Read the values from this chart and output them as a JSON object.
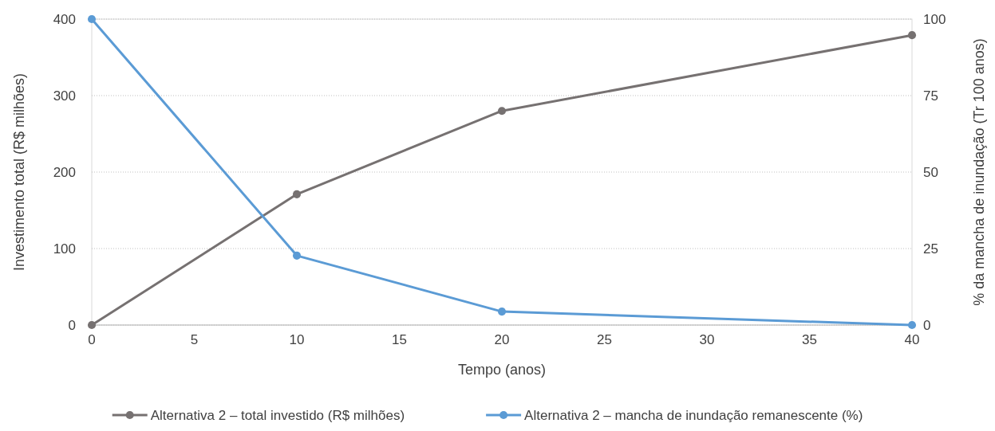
{
  "chart_data": {
    "type": "line",
    "xlabel": "Tempo (anos)",
    "ylabel": "Investimento total (R$ milhões)",
    "y2label": "% da mancha de inundação (Tr 100 anos)",
    "x": [
      0,
      10,
      20,
      40
    ],
    "series": [
      {
        "name": "Alternativa 2 – total investido (R$ milhões)",
        "color": "#767171",
        "values": [
          0,
          171,
          280,
          379
        ]
      },
      {
        "name": "Alternativa 2 – mancha de inundação remanescente (%)",
        "color": "#5b9bd5",
        "values": [
          100,
          22.7,
          4.4,
          0
        ],
        "axis": "y2"
      }
    ],
    "xlim": [
      0,
      40
    ],
    "xticks": [
      0,
      5,
      10,
      15,
      20,
      25,
      30,
      35,
      40
    ],
    "ylim": [
      0,
      400
    ],
    "yticks": [
      0,
      100,
      200,
      300,
      400
    ],
    "y2lim": [
      0,
      100
    ],
    "y2ticks": [
      0,
      25,
      50,
      75,
      100
    ],
    "grid": "y",
    "legend": "bottom",
    "marker": "circle",
    "line_style": "solid"
  }
}
